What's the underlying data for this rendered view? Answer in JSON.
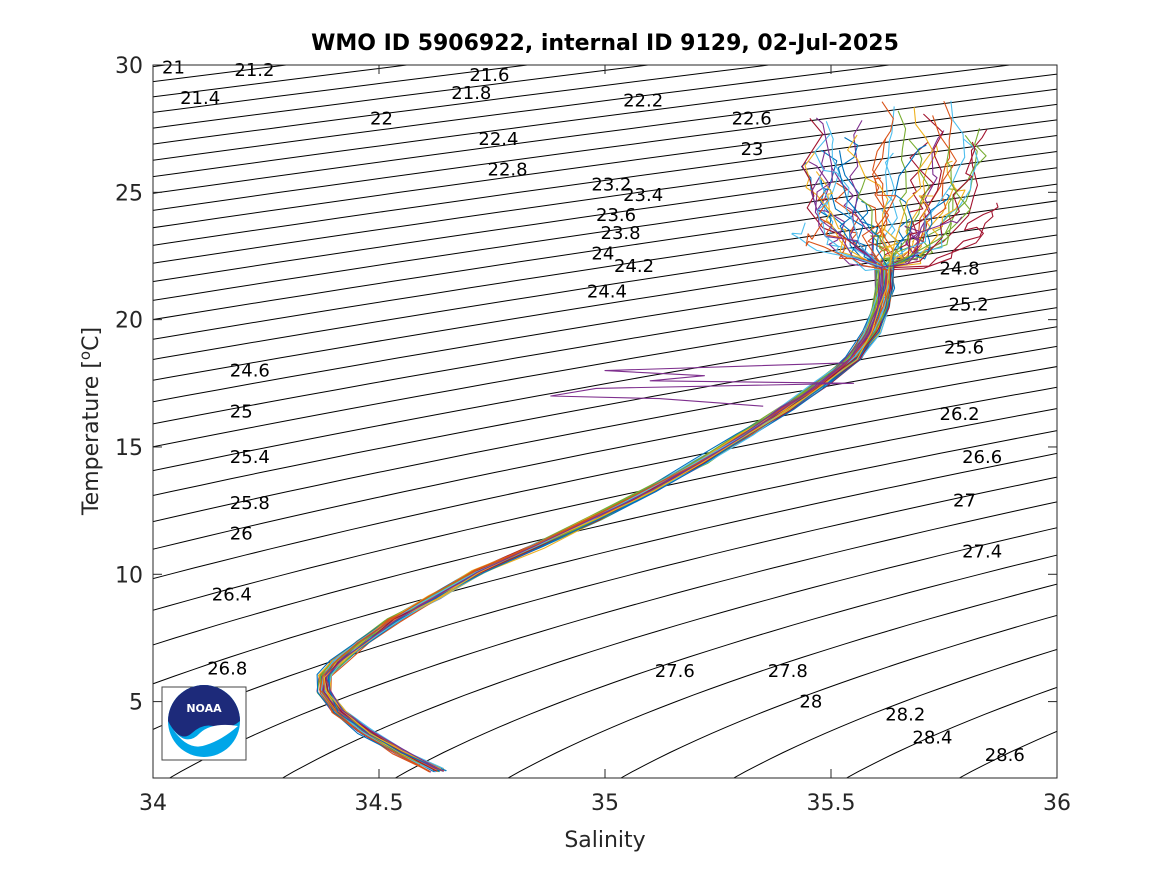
{
  "chart_data": {
    "type": "line",
    "title": "WMO ID 5906922, internal ID 9129, 02-Jul-2025",
    "xlabel": "Salinity",
    "ylabel_text": "Temperature [",
    "ylabel_sup": "o",
    "ylabel_unit": "C]",
    "xlim": [
      34,
      36
    ],
    "ylim": [
      2,
      30
    ],
    "x_ticks": [
      34,
      34.5,
      35,
      35.5,
      36
    ],
    "x_tick_labels": [
      "34",
      "34.5",
      "35",
      "35.5",
      "36"
    ],
    "y_ticks": [
      5,
      10,
      15,
      20,
      25,
      30
    ],
    "y_tick_labels": [
      "5",
      "10",
      "15",
      "20",
      "25",
      "30"
    ],
    "grid": false,
    "legend": "none",
    "isopycnals": {
      "sigma_min": 21.0,
      "sigma_max": 28.6,
      "step": 0.2,
      "labels": [
        {
          "text": "21",
          "s": 34.02,
          "t": 29.9
        },
        {
          "text": "21.2",
          "s": 34.18,
          "t": 29.8
        },
        {
          "text": "21.4",
          "s": 34.06,
          "t": 28.7
        },
        {
          "text": "21.6",
          "s": 34.7,
          "t": 29.6
        },
        {
          "text": "21.8",
          "s": 34.66,
          "t": 28.9
        },
        {
          "text": "22",
          "s": 34.48,
          "t": 27.9
        },
        {
          "text": "22.2",
          "s": 35.04,
          "t": 28.6
        },
        {
          "text": "22.4",
          "s": 34.72,
          "t": 27.1
        },
        {
          "text": "22.6",
          "s": 35.28,
          "t": 27.9
        },
        {
          "text": "22.8",
          "s": 34.74,
          "t": 25.9
        },
        {
          "text": "23",
          "s": 35.3,
          "t": 26.7
        },
        {
          "text": "23.2",
          "s": 34.97,
          "t": 25.3
        },
        {
          "text": "23.4",
          "s": 35.04,
          "t": 24.9
        },
        {
          "text": "23.6",
          "s": 34.98,
          "t": 24.1
        },
        {
          "text": "23.8",
          "s": 34.99,
          "t": 23.4
        },
        {
          "text": "24",
          "s": 34.97,
          "t": 22.6
        },
        {
          "text": "24.2",
          "s": 35.02,
          "t": 22.1
        },
        {
          "text": "24.4",
          "s": 34.96,
          "t": 21.1
        },
        {
          "text": "24.6",
          "s": 34.17,
          "t": 18.0
        },
        {
          "text": "24.8",
          "s": 35.74,
          "t": 22.0
        },
        {
          "text": "25",
          "s": 34.17,
          "t": 16.4
        },
        {
          "text": "25.2",
          "s": 35.76,
          "t": 20.6
        },
        {
          "text": "25.4",
          "s": 34.17,
          "t": 14.6
        },
        {
          "text": "25.6",
          "s": 35.75,
          "t": 18.9
        },
        {
          "text": "25.8",
          "s": 34.17,
          "t": 12.8
        },
        {
          "text": "26",
          "s": 34.17,
          "t": 11.6
        },
        {
          "text": "26.2",
          "s": 35.74,
          "t": 16.3
        },
        {
          "text": "26.4",
          "s": 34.13,
          "t": 9.2
        },
        {
          "text": "26.6",
          "s": 35.79,
          "t": 14.6
        },
        {
          "text": "26.8",
          "s": 34.12,
          "t": 6.3
        },
        {
          "text": "27",
          "s": 35.77,
          "t": 12.9
        },
        {
          "text": "27.4",
          "s": 35.79,
          "t": 10.9
        },
        {
          "text": "27.6",
          "s": 35.11,
          "t": 6.2
        },
        {
          "text": "27.8",
          "s": 35.36,
          "t": 6.2
        },
        {
          "text": "28",
          "s": 35.43,
          "t": 5.0
        },
        {
          "text": "28.2",
          "s": 35.62,
          "t": 4.5
        },
        {
          "text": "28.4",
          "s": 35.68,
          "t": 3.6
        },
        {
          "text": "28.6",
          "s": 35.84,
          "t": 2.9
        }
      ]
    },
    "profile_count": 60,
    "profile_colors": [
      "#0072bd",
      "#d95319",
      "#edb120",
      "#7e2f8e",
      "#77ac30",
      "#4dbeee",
      "#a2142f"
    ],
    "mean_profile": [
      {
        "s": 34.63,
        "t": 2.3
      },
      {
        "s": 34.55,
        "t": 3.0
      },
      {
        "s": 34.47,
        "t": 3.8
      },
      {
        "s": 34.41,
        "t": 4.6
      },
      {
        "s": 34.38,
        "t": 5.4
      },
      {
        "s": 34.38,
        "t": 6.0
      },
      {
        "s": 34.41,
        "t": 6.6
      },
      {
        "s": 34.46,
        "t": 7.3
      },
      {
        "s": 34.53,
        "t": 8.2
      },
      {
        "s": 34.62,
        "t": 9.1
      },
      {
        "s": 34.72,
        "t": 10.1
      },
      {
        "s": 34.85,
        "t": 11.1
      },
      {
        "s": 34.98,
        "t": 12.2
      },
      {
        "s": 35.1,
        "t": 13.3
      },
      {
        "s": 35.21,
        "t": 14.4
      },
      {
        "s": 35.31,
        "t": 15.5
      },
      {
        "s": 35.4,
        "t": 16.5
      },
      {
        "s": 35.48,
        "t": 17.5
      },
      {
        "s": 35.55,
        "t": 18.5
      },
      {
        "s": 35.59,
        "t": 19.5
      },
      {
        "s": 35.61,
        "t": 20.5
      },
      {
        "s": 35.62,
        "t": 21.3
      },
      {
        "s": 35.62,
        "t": 22.0
      }
    ],
    "outlier_profile": [
      {
        "s": 35.53,
        "t": 18.3
      },
      {
        "s": 35.0,
        "t": 18.0
      },
      {
        "s": 35.22,
        "t": 17.8
      },
      {
        "s": 35.1,
        "t": 17.6
      },
      {
        "s": 35.55,
        "t": 17.5
      },
      {
        "s": 34.98,
        "t": 17.3
      },
      {
        "s": 34.88,
        "t": 17.0
      },
      {
        "s": 35.12,
        "t": 16.9
      },
      {
        "s": 35.35,
        "t": 16.6
      }
    ]
  },
  "logo": {
    "text": "NOAA",
    "colors": {
      "navy": "#1d2a7a",
      "cyan": "#00a6e8",
      "white": "#ffffff"
    }
  },
  "colors": {
    "axis": "#262626",
    "isopycnal": "#000000",
    "background": "#ffffff"
  }
}
